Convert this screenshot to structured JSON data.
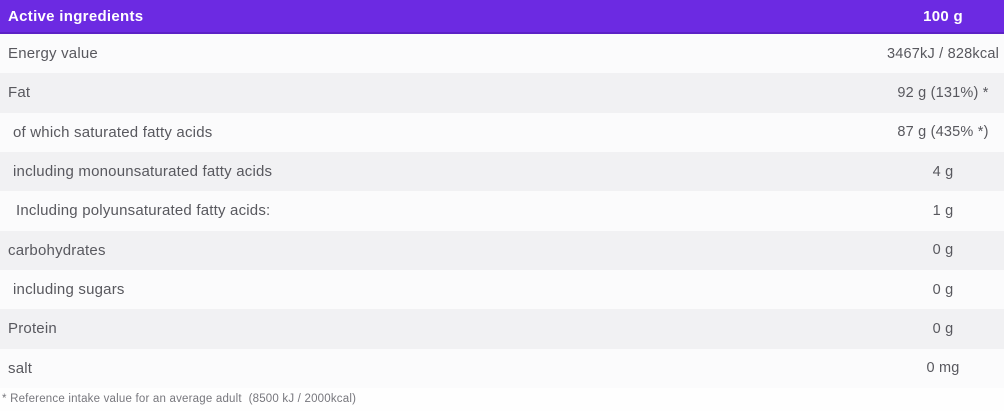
{
  "table": {
    "header": {
      "label": "Active ingredients",
      "value": "100 g"
    },
    "rows": [
      {
        "label": "Energy value",
        "value": "3467kJ / 828kcal"
      },
      {
        "label": "Fat",
        "value": "92 g (131%) *"
      },
      {
        "label": "of which saturated fatty acids",
        "value": "87 g (435% *)"
      },
      {
        "label": "including monounsaturated fatty acids",
        "value": "4 g"
      },
      {
        "label": "Including polyunsaturated fatty acids:",
        "value": "1 g"
      },
      {
        "label": "carbohydrates",
        "value": "0 g"
      },
      {
        "label": "including sugars",
        "value": "0 g"
      },
      {
        "label": "Protein",
        "value": "0 g"
      },
      {
        "label": "salt",
        "value": "0 mg"
      }
    ],
    "footnote": "* Reference intake value for an average adult  (8500 kJ / 2000kcal)"
  },
  "colors": {
    "header_bg": "#6c2ae2",
    "header_border": "#5c22c6",
    "header_text": "#ffffff",
    "row_light": "#fbfbfc",
    "row_dark": "#f1f1f3",
    "label_text": "#58585e",
    "footnote_text": "#77777d"
  }
}
